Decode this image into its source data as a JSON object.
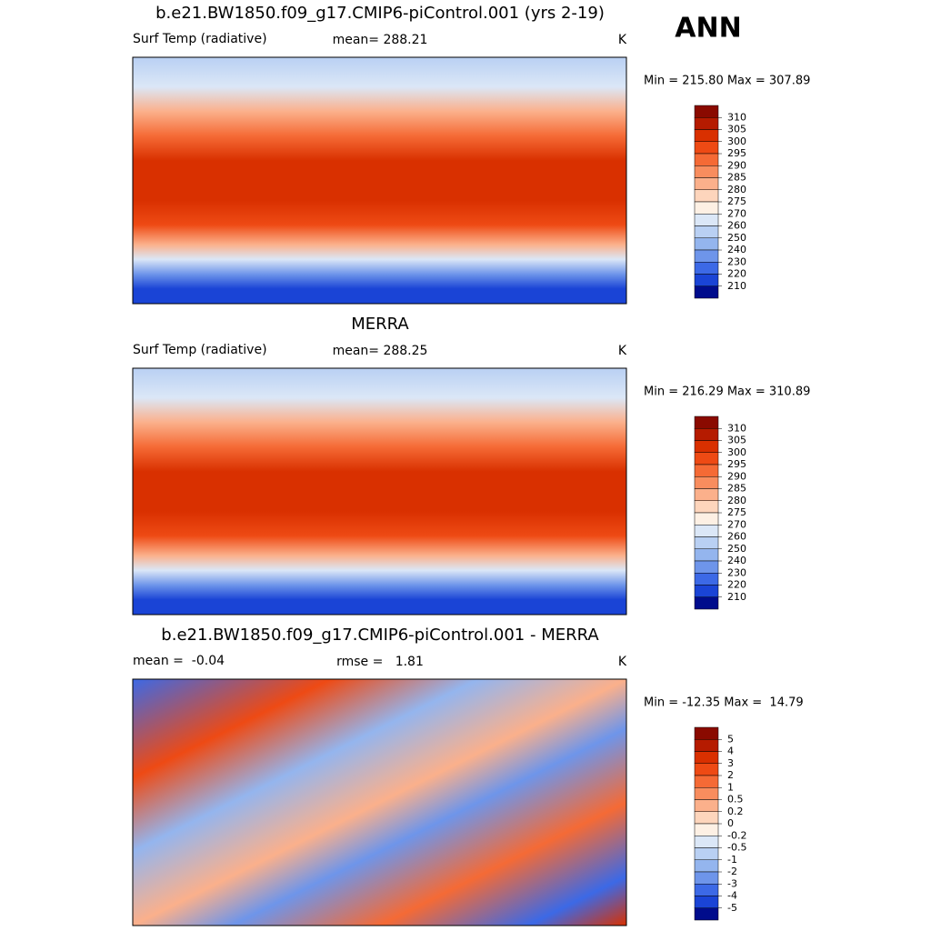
{
  "figure_label": "ANN",
  "panels": [
    {
      "title": "b.e21.BW1850.f09_g17.CMIP6-piControl.001 (yrs 2-19)",
      "left": "Surf Temp (radiative)",
      "center": "mean= 288.21",
      "right": "K",
      "range": "Min = 215.80 Max = 307.89",
      "colorbar": {
        "levels": [
          310,
          305,
          300,
          295,
          290,
          285,
          280,
          275,
          270,
          260,
          250,
          240,
          230,
          220,
          210
        ],
        "colors": [
          "#8a0a00",
          "#b51b00",
          "#d93000",
          "#ee4a14",
          "#f56a35",
          "#f88d5e",
          "#fbb08b",
          "#fdd5bc",
          "#fdf0e4",
          "#dbe7f7",
          "#b9d0f3",
          "#94b5ee",
          "#6e95ea",
          "#3c69e6",
          "#1a44d6",
          "#000c8c"
        ]
      }
    },
    {
      "title": "MERRA",
      "left": "Surf Temp (radiative)",
      "center": "mean= 288.25",
      "right": "K",
      "range": "Min = 216.29 Max = 310.89",
      "colorbar": {
        "levels": [
          310,
          305,
          300,
          295,
          290,
          285,
          280,
          275,
          270,
          260,
          250,
          240,
          230,
          220,
          210
        ],
        "colors": [
          "#8a0a00",
          "#b51b00",
          "#d93000",
          "#ee4a14",
          "#f56a35",
          "#f88d5e",
          "#fbb08b",
          "#fdd5bc",
          "#fdf0e4",
          "#dbe7f7",
          "#b9d0f3",
          "#94b5ee",
          "#6e95ea",
          "#3c69e6",
          "#1a44d6",
          "#000c8c"
        ]
      }
    },
    {
      "title": "b.e21.BW1850.f09_g17.CMIP6-piControl.001 - MERRA",
      "left": "mean =  -0.04",
      "center": "rmse =   1.81",
      "right": "K",
      "range": "Min = -12.35 Max =  14.79",
      "colorbar": {
        "levels": [
          5,
          4,
          3,
          2,
          1,
          0.5,
          0.2,
          0,
          -0.2,
          -0.5,
          -1,
          -2,
          -3,
          -4,
          -5
        ],
        "colors": [
          "#8a0a00",
          "#b51b00",
          "#d93000",
          "#ee4a14",
          "#f56a35",
          "#f88d5e",
          "#fbb08b",
          "#fdd5bc",
          "#fdf0e4",
          "#dbe7f7",
          "#b9d0f3",
          "#94b5ee",
          "#6e95ea",
          "#3c69e6",
          "#1a44d6",
          "#000c8c"
        ]
      }
    }
  ]
}
